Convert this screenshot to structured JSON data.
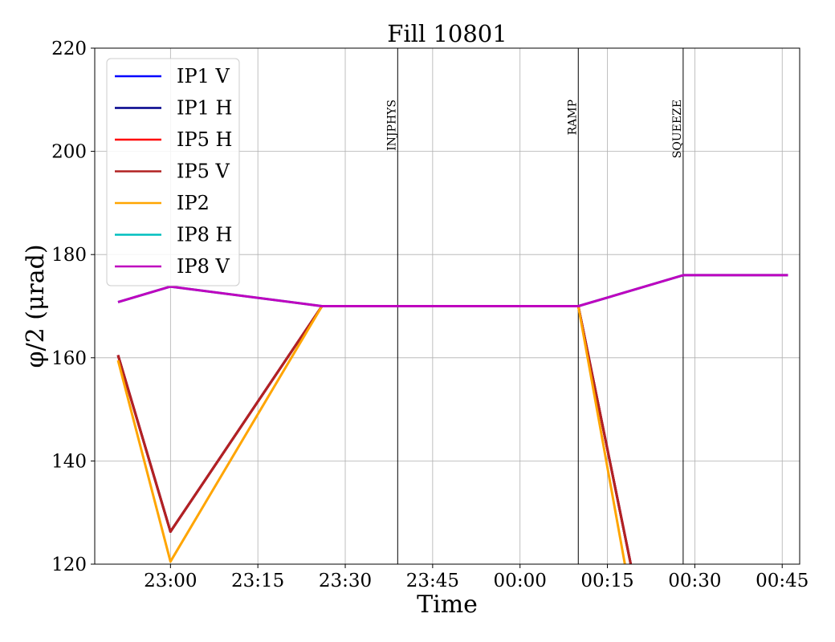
{
  "chart_data": {
    "type": "line",
    "title": "Fill 10801",
    "xlabel": "Time",
    "ylabel": "φ/2 (μrad)",
    "xlim": [
      "22:47",
      "00:48"
    ],
    "ylim": [
      120,
      220
    ],
    "grid": true,
    "legend_position": "top-left",
    "x_ticks": [
      "23:00",
      "23:15",
      "23:30",
      "23:45",
      "00:00",
      "00:15",
      "00:30",
      "00:45"
    ],
    "y_ticks": [
      120,
      140,
      160,
      180,
      200,
      220
    ],
    "events": [
      {
        "label": "INJPHYS",
        "time": "23:39"
      },
      {
        "label": "RAMP",
        "time": "00:10"
      },
      {
        "label": "SQUEEZE",
        "time": "00:28"
      }
    ],
    "series": [
      {
        "name": "IP1 V",
        "color": "#0000ff",
        "points": [
          [
            "22:51",
            160.5
          ],
          [
            "23:00",
            126.3
          ],
          [
            "23:26",
            170
          ],
          [
            "00:10",
            170
          ],
          [
            "00:19",
            120
          ]
        ]
      },
      {
        "name": "IP1 H",
        "color": "#00008b",
        "points": [
          [
            "22:51",
            160.5
          ],
          [
            "23:00",
            126.3
          ],
          [
            "23:26",
            170
          ],
          [
            "00:10",
            170
          ],
          [
            "00:19",
            120
          ]
        ]
      },
      {
        "name": "IP5 H",
        "color": "#ff0000",
        "points": [
          [
            "22:51",
            160.5
          ],
          [
            "23:00",
            126.3
          ],
          [
            "23:26",
            170
          ],
          [
            "00:10",
            170
          ],
          [
            "00:19",
            120
          ]
        ]
      },
      {
        "name": "IP5 V",
        "color": "#b22222",
        "points": [
          [
            "22:51",
            160.5
          ],
          [
            "23:00",
            126.3
          ],
          [
            "23:26",
            170
          ],
          [
            "00:10",
            170
          ],
          [
            "00:19",
            120
          ]
        ]
      },
      {
        "name": "IP2",
        "color": "#ffa500",
        "points": [
          [
            "22:51",
            159.5
          ],
          [
            "23:00",
            120.5
          ],
          [
            "23:26",
            170
          ],
          [
            "00:10",
            170
          ],
          [
            "00:18",
            120
          ]
        ]
      },
      {
        "name": "IP8 H",
        "color": "#00bfbf",
        "points": [
          [
            "22:51",
            170.8
          ],
          [
            "23:00",
            173.8
          ],
          [
            "23:26",
            170
          ],
          [
            "00:10",
            170
          ],
          [
            "00:28",
            176
          ],
          [
            "00:46",
            176
          ]
        ]
      },
      {
        "name": "IP8 V",
        "color": "#bf00bf",
        "points": [
          [
            "22:51",
            170.8
          ],
          [
            "23:00",
            173.8
          ],
          [
            "23:26",
            170
          ],
          [
            "00:10",
            170
          ],
          [
            "00:28",
            176
          ],
          [
            "00:46",
            176
          ]
        ]
      }
    ]
  }
}
